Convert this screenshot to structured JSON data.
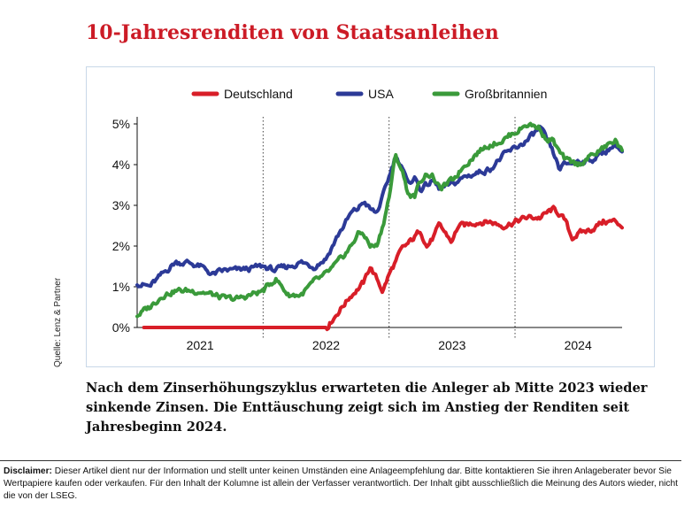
{
  "title": "10-Jahresrenditen von Staatsanleihen",
  "source": "Quelle: Lenz & Partner",
  "caption": "Nach dem Zinserhöhungszyklus erwarteten die Anleger ab Mitte 2023 wieder sinkende Zinsen. Die Enttäuschung zeigt sich im Anstieg der Renditen seit Jahresbeginn 2024.",
  "disclaimer": {
    "label": "Disclaimer:",
    "text": "Dieser Artikel dient nur der Information und stellt unter keinen Umständen eine Anlageempfehlung dar. Bitte kontaktieren Sie ihren Anlageberater bevor Sie Wertpapiere kaufen oder verkaufen. Für den Inhalt der Kolumne ist allein der Verfasser verantwortlich. Der Inhalt gibt ausschließlich die Meinung des Autors wieder, nicht die von der LSEG."
  },
  "colors": {
    "title": "#cc1b26",
    "Deutschland": "#d81e28",
    "USA": "#2c3a97",
    "Großbritannien": "#3a9a3a"
  },
  "chart_data": {
    "type": "line",
    "xlabel": "",
    "ylabel": "",
    "xlim": [
      2020.5,
      2024.35
    ],
    "ylim": [
      0,
      5
    ],
    "x_ticks": [
      2021,
      2022,
      2023,
      2024
    ],
    "x_tick_labels": [
      "2021",
      "2022",
      "2023",
      "2024"
    ],
    "y_ticks": [
      0,
      1,
      2,
      3,
      4,
      5
    ],
    "y_tick_labels": [
      "0%",
      "1%",
      "2%",
      "3%",
      "4%",
      "5%"
    ],
    "legend_position": "top-center",
    "grid": "dotted vertical lines at year boundaries",
    "series": [
      {
        "name": "Deutschland",
        "x": [
          2020.5,
          2020.55,
          2021.0,
          2021.5,
          2021.95,
          2022.0,
          2022.1,
          2022.2,
          2022.3,
          2022.35,
          2022.45,
          2022.5,
          2022.6,
          2022.7,
          2022.75,
          2022.8,
          2022.85,
          2022.9,
          2022.95,
          2023.0,
          2023.05,
          2023.1,
          2023.2,
          2023.3,
          2023.4,
          2023.5,
          2023.6,
          2023.7,
          2023.75,
          2023.8,
          2023.85,
          2023.9,
          2023.95,
          2024.0,
          2024.1,
          2024.2,
          2024.3,
          2024.35
        ],
        "values": [
          null,
          0.0,
          0.0,
          0.0,
          0.0,
          0.0,
          0.4,
          0.8,
          1.1,
          1.5,
          0.9,
          1.3,
          1.9,
          2.2,
          2.4,
          2.0,
          2.2,
          2.5,
          2.3,
          2.1,
          2.5,
          2.5,
          2.6,
          2.6,
          2.5,
          2.6,
          2.7,
          2.7,
          2.8,
          2.9,
          2.8,
          2.6,
          2.2,
          2.3,
          2.4,
          2.6,
          2.6,
          2.5
        ]
      },
      {
        "name": "USA",
        "x": [
          2020.5,
          2020.6,
          2020.7,
          2020.8,
          2020.9,
          2021.0,
          2021.1,
          2021.2,
          2021.3,
          2021.5,
          2021.6,
          2021.7,
          2021.8,
          2021.9,
          2022.0,
          2022.1,
          2022.2,
          2022.25,
          2022.3,
          2022.35,
          2022.4,
          2022.45,
          2022.5,
          2022.55,
          2022.6,
          2022.65,
          2022.7,
          2022.75,
          2022.8,
          2022.85,
          2022.9,
          2023.0,
          2023.1,
          2023.2,
          2023.3,
          2023.4,
          2023.5,
          2023.6,
          2023.7,
          2023.75,
          2023.8,
          2023.85,
          2023.9,
          2024.0,
          2024.1,
          2024.2,
          2024.3,
          2024.35
        ],
        "values": [
          1.1,
          1.0,
          1.3,
          1.6,
          1.6,
          1.5,
          1.3,
          1.4,
          1.4,
          1.5,
          1.4,
          1.5,
          1.6,
          1.5,
          1.7,
          2.3,
          2.8,
          2.9,
          3.1,
          2.9,
          2.8,
          3.2,
          3.7,
          4.2,
          4.0,
          3.5,
          3.7,
          3.4,
          3.5,
          3.6,
          3.4,
          3.5,
          3.7,
          3.8,
          3.9,
          4.2,
          4.4,
          4.6,
          4.9,
          4.6,
          4.3,
          3.9,
          4.0,
          4.1,
          4.1,
          4.3,
          4.5,
          4.3
        ]
      },
      {
        "name": "Großbritannien",
        "x": [
          2020.5,
          2020.6,
          2020.7,
          2020.8,
          2020.9,
          2021.0,
          2021.1,
          2021.2,
          2021.3,
          2021.5,
          2021.6,
          2021.7,
          2021.8,
          2021.9,
          2022.0,
          2022.1,
          2022.2,
          2022.25,
          2022.3,
          2022.35,
          2022.4,
          2022.45,
          2022.5,
          2022.55,
          2022.6,
          2022.65,
          2022.7,
          2022.75,
          2022.8,
          2022.85,
          2022.9,
          2023.0,
          2023.1,
          2023.2,
          2023.3,
          2023.4,
          2023.5,
          2023.6,
          2023.7,
          2023.75,
          2023.8,
          2023.85,
          2023.9,
          2024.0,
          2024.1,
          2024.2,
          2024.3,
          2024.35
        ],
        "values": [
          0.3,
          0.5,
          0.8,
          0.9,
          0.9,
          0.9,
          0.8,
          0.7,
          0.7,
          0.9,
          1.2,
          0.8,
          0.8,
          1.1,
          1.3,
          1.6,
          2.0,
          2.3,
          2.3,
          2.0,
          2.0,
          2.5,
          3.2,
          4.2,
          3.9,
          3.3,
          3.2,
          3.6,
          3.8,
          3.7,
          3.4,
          3.6,
          4.0,
          4.3,
          4.5,
          4.6,
          4.8,
          5.0,
          4.9,
          4.6,
          4.6,
          4.3,
          4.1,
          4.0,
          4.2,
          4.4,
          4.6,
          4.3
        ]
      }
    ]
  }
}
